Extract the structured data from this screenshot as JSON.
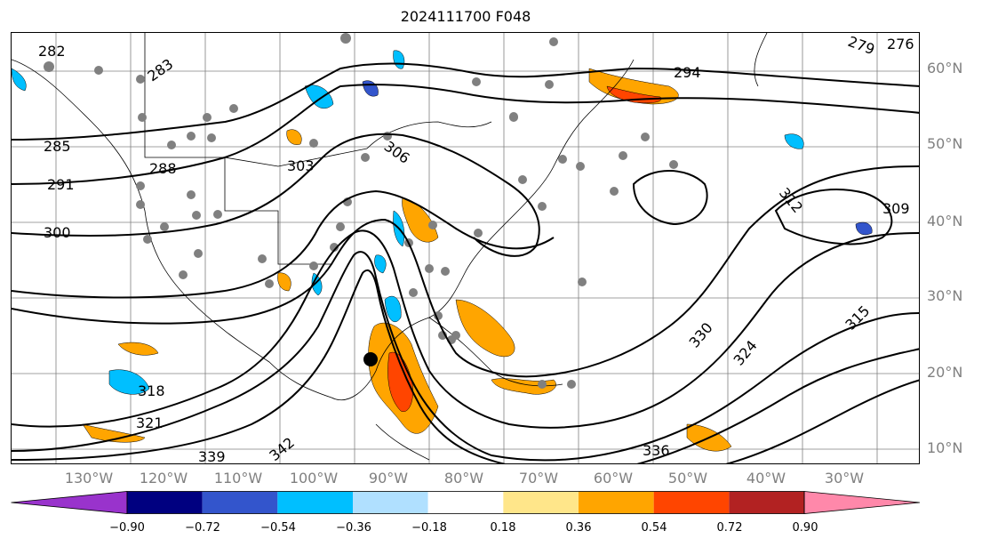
{
  "title": "2024111700 F048",
  "latitude_labels": [
    "60°N",
    "50°N",
    "40°N",
    "30°N",
    "20°N",
    "10°N"
  ],
  "longitude_labels": [
    "130°W",
    "120°W",
    "110°W",
    "100°W",
    "90°W",
    "80°W",
    "70°W",
    "60°W",
    "50°W",
    "40°W",
    "30°W"
  ],
  "contour_labels": [
    "282",
    "283",
    "285",
    "288",
    "291",
    "294",
    "300",
    "303",
    "306",
    "309",
    "312",
    "315",
    "318",
    "321",
    "324",
    "330",
    "336",
    "339",
    "342",
    "276",
    "279"
  ],
  "colorbar": {
    "tick_labels": [
      "−0.90",
      "−0.72",
      "−0.54",
      "−0.36",
      "−0.18",
      "0.18",
      "0.36",
      "0.54",
      "0.72",
      "0.90"
    ],
    "colors": [
      "#9933cc",
      "#000080",
      "#3355cc",
      "#00bfff",
      "#b0e0ff",
      "#ffffff",
      "#ffe68a",
      "#ffa500",
      "#ff4500",
      "#b22222",
      "#ff88aa"
    ],
    "extend": "both"
  },
  "map_colors": {
    "positive_low": "#ffa500",
    "positive_mid": "#ff4500",
    "negative_low": "#00bfff",
    "negative_mid": "#3355cc",
    "station_dot": "#808080",
    "contour": "#000000",
    "grid": "#808080"
  }
}
